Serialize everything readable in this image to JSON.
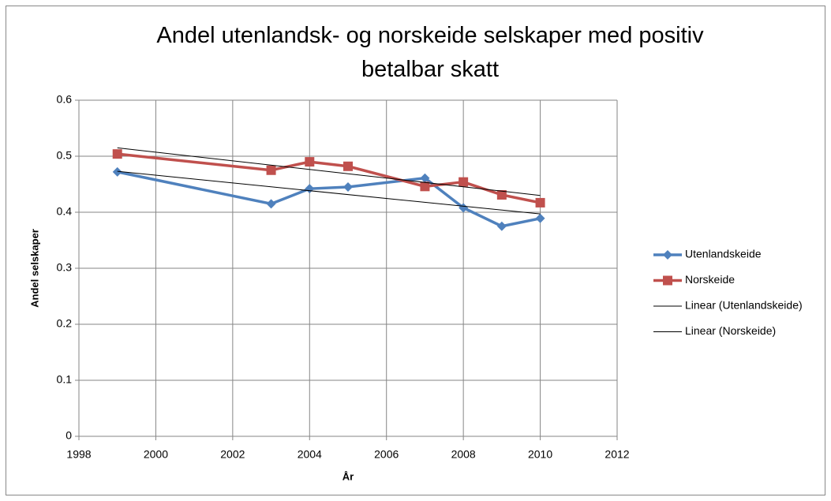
{
  "chart_data": {
    "type": "line",
    "title": "Andel utenlandsk- og norskeide selskaper med positiv betalbar skatt",
    "x_label": "År",
    "y_label": "Andel selskaper",
    "xlim": [
      1998,
      2012
    ],
    "xticks": [
      1998,
      2000,
      2002,
      2004,
      2006,
      2008,
      2010,
      2012
    ],
    "ylim": [
      0,
      0.6
    ],
    "yticks": [
      0,
      0.1,
      0.2,
      0.3,
      0.4,
      0.5,
      0.6
    ],
    "grid": true,
    "legend": "right",
    "series": [
      {
        "name": "Utenlandskeide",
        "color": "#4f81bd",
        "marker": "diamond",
        "x": [
          1999,
          2003,
          2004,
          2005,
          2007,
          2008,
          2009,
          2010
        ],
        "values": [
          0.472,
          0.415,
          0.442,
          0.445,
          0.461,
          0.408,
          0.375,
          0.389
        ]
      },
      {
        "name": "Norskeide",
        "color": "#c0504d",
        "marker": "square",
        "x": [
          1999,
          2003,
          2004,
          2005,
          2007,
          2008,
          2009,
          2010
        ],
        "values": [
          0.504,
          0.475,
          0.49,
          0.482,
          0.446,
          0.454,
          0.431,
          0.417
        ]
      },
      {
        "name": "Linear (Utenlandskeide)",
        "color": "#000000",
        "marker": "none",
        "x": [
          1999,
          2010
        ],
        "values": [
          0.473,
          0.397
        ]
      },
      {
        "name": "Linear (Norskeide)",
        "color": "#000000",
        "marker": "none",
        "x": [
          1999,
          2010
        ],
        "values": [
          0.515,
          0.43
        ]
      }
    ]
  }
}
